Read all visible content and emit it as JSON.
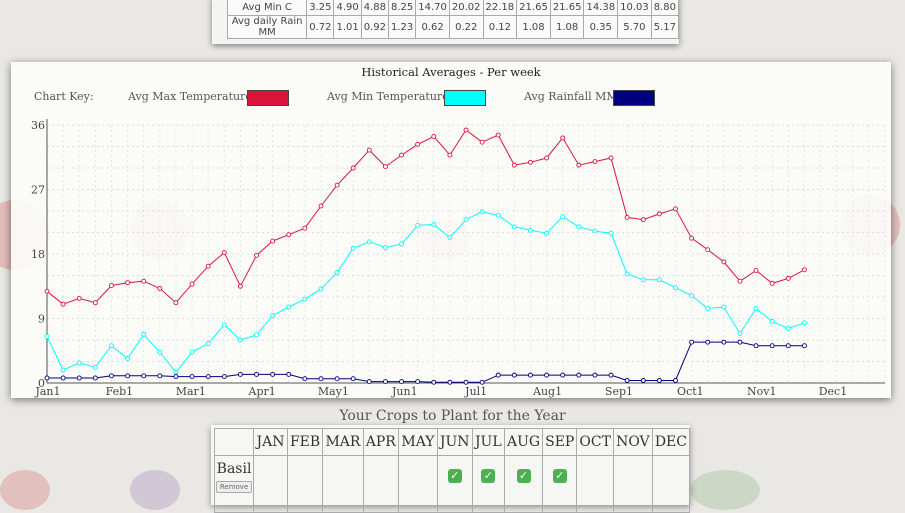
{
  "monthly": {
    "rows": [
      {
        "label": "Avg Min C",
        "values": [
          "3.25",
          "4.90",
          "4.88",
          "8.25",
          "14.70",
          "20.02",
          "22.18",
          "21.65",
          "21.65",
          "14.38",
          "10.03",
          "8.80"
        ]
      },
      {
        "label": "Avg daily Rain MM",
        "values": [
          "0.72",
          "1.01",
          "0.92",
          "1.23",
          "0.62",
          "0.22",
          "0.12",
          "1.08",
          "1.08",
          "0.35",
          "5.70",
          "5.17"
        ]
      }
    ]
  },
  "chart_key": {
    "label": "Chart Key:",
    "items": [
      {
        "label": "Avg Max Temperature:",
        "color": "#dc143c"
      },
      {
        "label": "Avg Min Temperature:",
        "color": "#00ffff"
      },
      {
        "label": "Avg Rainfall MM:",
        "color": "#000080"
      }
    ]
  },
  "chart_data": {
    "type": "line",
    "title": "Historical Averages - Per week",
    "xlabel": "",
    "ylabel": "",
    "ylim": [
      0,
      36
    ],
    "yticks": [
      0,
      9,
      18,
      27,
      36
    ],
    "grid": true,
    "x_tick_labels": [
      "Jan1",
      "Feb1",
      "Mar1",
      "Apr1",
      "May1",
      "Jun1",
      "Jul1",
      "Aug1",
      "Sep1",
      "Oct1",
      "Nov1",
      "Dec1"
    ],
    "x_tick_weeks": [
      0,
      4.43,
      8.86,
      13.29,
      17.71,
      22.14,
      26.57,
      31,
      35.43,
      39.86,
      44.29,
      48.71
    ],
    "weeks": 53,
    "series": [
      {
        "name": "Avg Max Temperature",
        "color": "#dc143c",
        "values": [
          12.8,
          11,
          11.8,
          11.2,
          13.6,
          14,
          14.2,
          13.2,
          11.2,
          13.8,
          16.3,
          18.2,
          13.5,
          17.8,
          19.8,
          20.7,
          21.6,
          24.7,
          27.6,
          30,
          32.5,
          30.2,
          31.8,
          33.3,
          34.4,
          31.8,
          35.3,
          33.6,
          34.6,
          30.4,
          30.8,
          31.4,
          34.2,
          30.4,
          30.9,
          31.4,
          23.1,
          22.8,
          23.6,
          24.3,
          20.2,
          18.6,
          16.9,
          14.2,
          15.7,
          13.9,
          14.6,
          15.8
        ]
      },
      {
        "name": "Avg Min Temperature",
        "color": "#00ffff",
        "values": [
          6.5,
          1.8,
          2.8,
          2.2,
          5.2,
          3.4,
          6.8,
          4.3,
          1.5,
          4.3,
          5.5,
          8.1,
          6,
          6.7,
          9.4,
          10.6,
          11.7,
          13.1,
          15.4,
          18.8,
          19.7,
          18.9,
          19.4,
          22,
          22.1,
          20.3,
          22.8,
          23.9,
          23.4,
          21.8,
          21.3,
          20.9,
          23.2,
          21.8,
          21.2,
          20.9,
          15.2,
          14.4,
          14.4,
          13.3,
          12.2,
          10.4,
          10.6,
          6.9,
          10.4,
          8.6,
          7.6,
          8.4
        ]
      },
      {
        "name": "Avg Rainfall MM",
        "color": "#000080",
        "values": [
          0.7,
          0.7,
          0.7,
          0.7,
          1,
          1,
          1,
          1,
          0.9,
          0.9,
          0.9,
          0.9,
          1.2,
          1.2,
          1.2,
          1.2,
          0.6,
          0.6,
          0.6,
          0.6,
          0.2,
          0.2,
          0.2,
          0.2,
          0.1,
          0.1,
          0.1,
          0.1,
          1.1,
          1.1,
          1.1,
          1.1,
          1.1,
          1.1,
          1.1,
          1.1,
          0.35,
          0.35,
          0.35,
          0.35,
          5.7,
          5.7,
          5.7,
          5.7,
          5.2,
          5.2,
          5.2,
          5.2
        ]
      }
    ]
  },
  "crops": {
    "title": "Your Crops to Plant for the Year",
    "months": [
      "JAN",
      "FEB",
      "MAR",
      "APR",
      "MAY",
      "JUN",
      "JUL",
      "AUG",
      "SEP",
      "OCT",
      "NOV",
      "DEC"
    ],
    "rows": [
      {
        "name": "Basil",
        "remove_label": "Remove",
        "months": [
          false,
          false,
          false,
          false,
          false,
          true,
          true,
          true,
          true,
          false,
          false,
          false
        ],
        "check": "✅"
      }
    ]
  },
  "colors": {
    "accent_check": "#4caf50"
  }
}
